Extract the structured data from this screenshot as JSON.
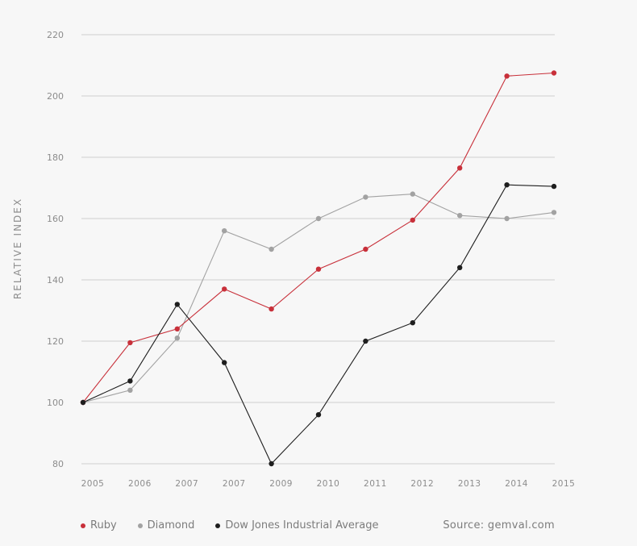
{
  "chart_data": {
    "type": "line",
    "title": "",
    "xlabel": "",
    "ylabel": "RELATIVE INDEX",
    "categories": [
      "2005",
      "2006",
      "2007",
      "2007",
      "2009",
      "2010",
      "2011",
      "2012",
      "2013",
      "2014",
      "2015"
    ],
    "ylim": [
      80,
      220
    ],
    "yticks": [
      80,
      100,
      120,
      140,
      160,
      180,
      200,
      220
    ],
    "grid": true,
    "legend_position": "bottom-left",
    "series": [
      {
        "name": "Ruby",
        "color": "#c8303a",
        "values": [
          100,
          119.5,
          124,
          137,
          130.5,
          143.5,
          150,
          159.5,
          176.5,
          206.5,
          207.5
        ]
      },
      {
        "name": "Diamond",
        "color": "#a2a2a2",
        "values": [
          100,
          104,
          121,
          156,
          150,
          160,
          167,
          168,
          161,
          160,
          162
        ]
      },
      {
        "name": "Dow Jones Industrial Average",
        "color": "#1e1e1e",
        "values": [
          100,
          107,
          132,
          113,
          80,
          96,
          120,
          126,
          144,
          171,
          170.5
        ]
      }
    ],
    "source": "Source: gemval.com"
  }
}
